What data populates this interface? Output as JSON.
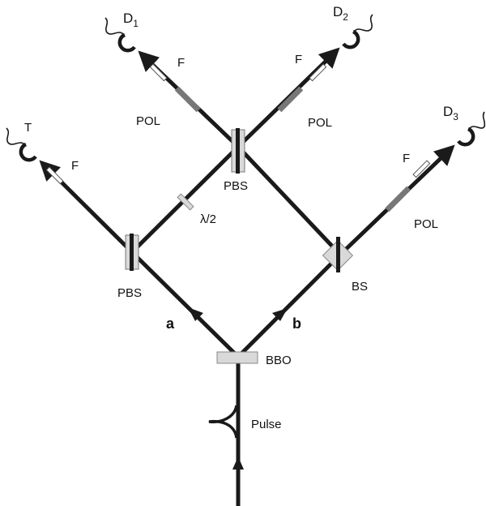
{
  "labels": {
    "d1_base": "D",
    "d1_sub": "1",
    "d2_base": "D",
    "d2_sub": "2",
    "d3_base": "D",
    "d3_sub": "3",
    "trigger": "T",
    "filter": "F",
    "polarizer": "POL",
    "pbs": "PBS",
    "half_wave": "λ/2",
    "bs": "BS",
    "arm_a": "a",
    "arm_b": "b",
    "bbo": "BBO",
    "pulse": "Pulse"
  },
  "colors": {
    "beam": "#1a1a1a",
    "component_fill": "#d9d9d9",
    "polarizer": "#777777",
    "background": "#ffffff"
  }
}
